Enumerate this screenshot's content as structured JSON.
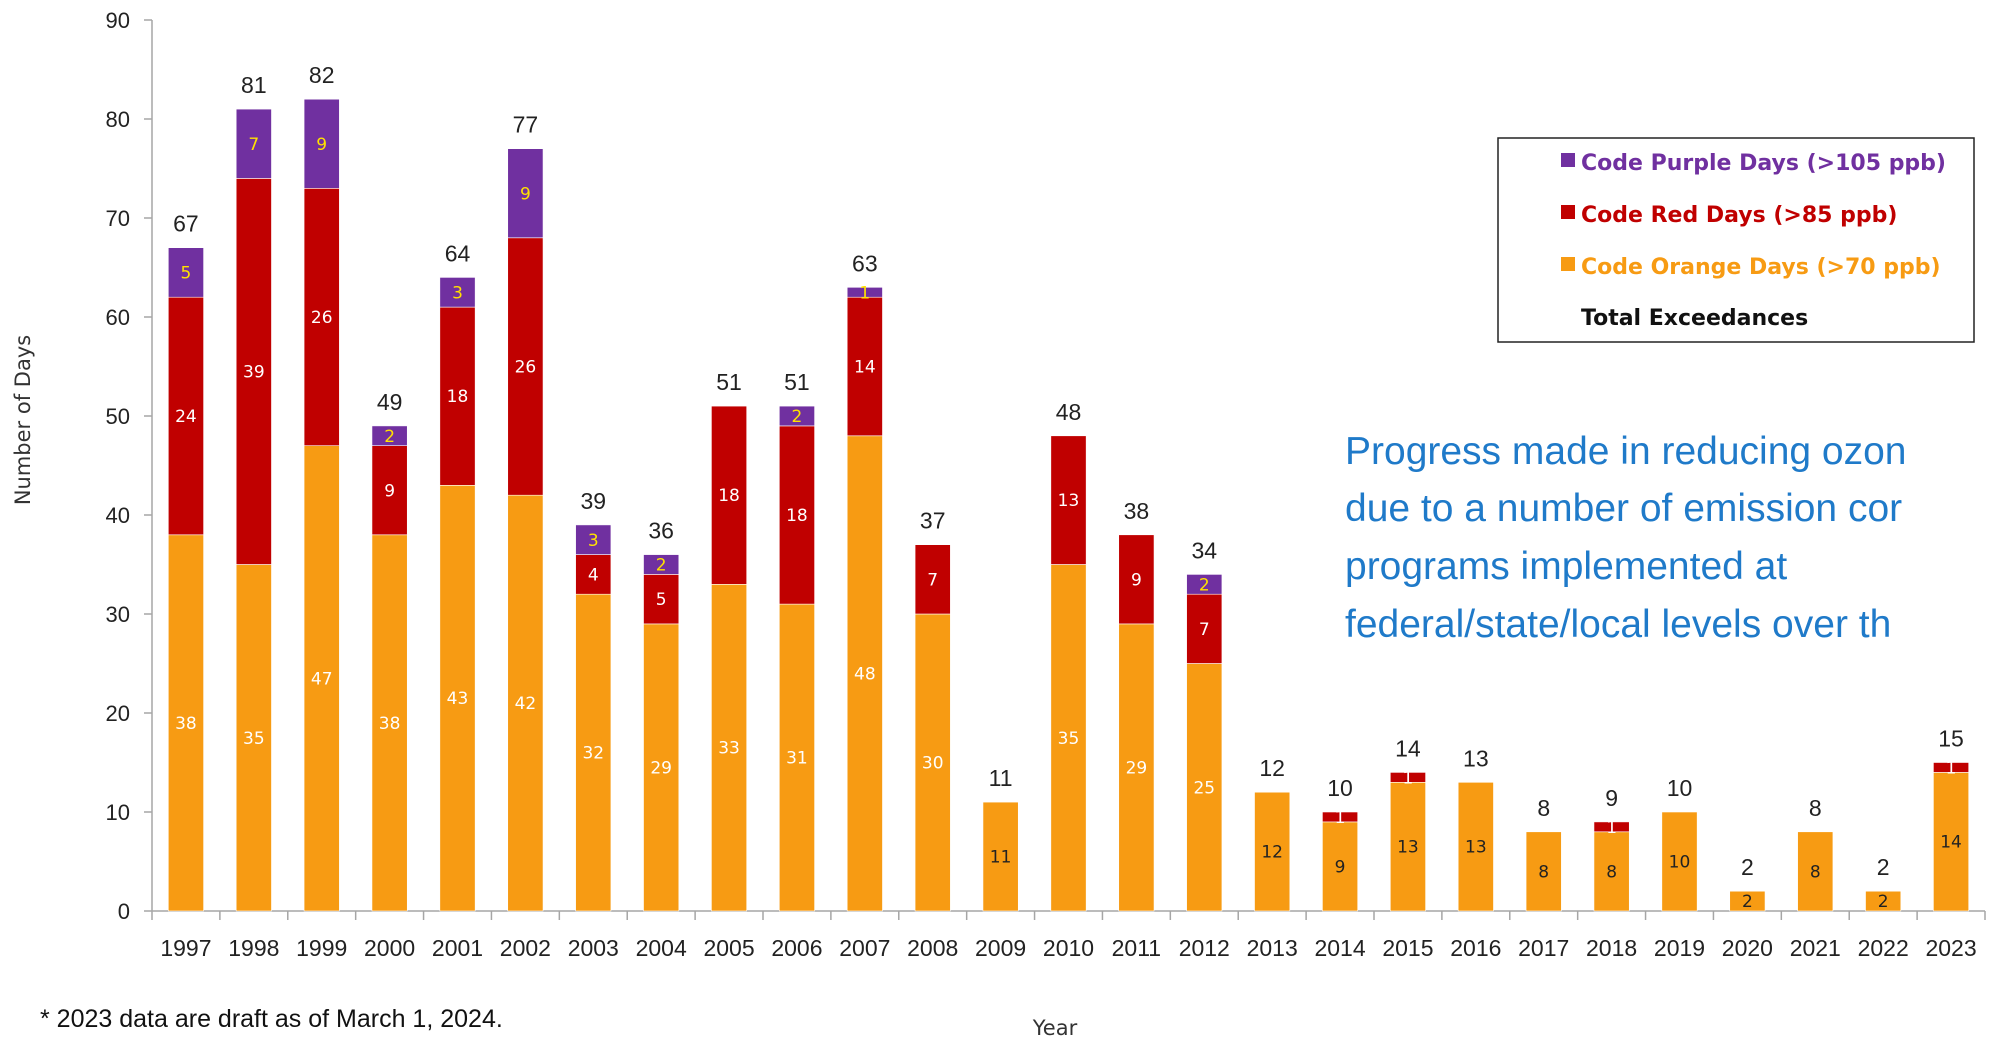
{
  "chart_data": {
    "type": "bar",
    "stacked": true,
    "categories": [
      "1997",
      "1998",
      "1999",
      "2000",
      "2001",
      "2002",
      "2003",
      "2004",
      "2005",
      "2006",
      "2007",
      "2008",
      "2009",
      "2010",
      "2011",
      "2012",
      "2013",
      "2014",
      "2015",
      "2016",
      "2017",
      "2018",
      "2019",
      "2020",
      "2021",
      "2022",
      "2023"
    ],
    "series": [
      {
        "name": "Code Orange Days (>70 ppb)",
        "color": "#f79b13",
        "values": [
          38,
          35,
          47,
          38,
          43,
          42,
          32,
          29,
          33,
          31,
          48,
          30,
          11,
          35,
          29,
          25,
          12,
          9,
          13,
          13,
          8,
          8,
          10,
          2,
          8,
          2,
          14
        ],
        "value_labels": [
          "38",
          "35",
          "47",
          "38",
          "43",
          "42",
          "32",
          "29",
          "33",
          "31",
          "48",
          "30",
          "11",
          "35",
          "29",
          "25",
          "12",
          "9",
          "13",
          "13",
          "8",
          "8",
          "10",
          "2",
          "8",
          "2",
          "14"
        ]
      },
      {
        "name": "Code Red Days (>85 ppb)",
        "color": "#c00000",
        "values": [
          24,
          39,
          26,
          9,
          18,
          26,
          4,
          5,
          18,
          18,
          14,
          7,
          0,
          13,
          9,
          7,
          0,
          1,
          1,
          0,
          0,
          1,
          0,
          0,
          0,
          0,
          1
        ],
        "value_labels": [
          "24",
          "39",
          "26",
          "9",
          "18",
          "26",
          "4",
          "5",
          "18",
          "18",
          "14",
          "7",
          "",
          "13",
          "9",
          "7",
          "",
          "1",
          "1",
          "",
          "0",
          "1",
          "",
          "",
          "",
          "",
          "1"
        ]
      },
      {
        "name": "Code Purple Days (>105 ppb)",
        "color": "#7030a0",
        "values": [
          5,
          7,
          9,
          2,
          3,
          9,
          3,
          2,
          0,
          2,
          1,
          0,
          0,
          0,
          0,
          2,
          0,
          0,
          0,
          0,
          0,
          0,
          0,
          0,
          0,
          0,
          0
        ],
        "value_labels": [
          "5",
          "7",
          "9",
          "2",
          "3",
          "9",
          "3",
          "2",
          "",
          "2",
          "1",
          "",
          "",
          "",
          "",
          "2",
          "",
          "",
          "",
          "",
          "",
          "",
          "",
          "",
          "",
          "",
          ""
        ]
      }
    ],
    "totals": [
      67,
      81,
      82,
      49,
      64,
      77,
      39,
      36,
      51,
      51,
      63,
      37,
      11,
      48,
      38,
      34,
      12,
      10,
      14,
      13,
      8,
      9,
      10,
      2,
      8,
      2,
      15
    ],
    "total_series_name": "Total Exceedances",
    "ylabel": "Number of Days",
    "xlabel": "Year",
    "ylim": [
      0,
      90
    ],
    "yticks": [
      0,
      10,
      20,
      30,
      40,
      50,
      60,
      70,
      80,
      90
    ],
    "legend_position": "top-right",
    "grid": false
  },
  "annotation": {
    "lines": [
      "Progress made in reducing ozon",
      "due to a number of emission cor",
      "programs implemented at",
      "federal/state/local levels over th"
    ]
  },
  "footnote": "* 2023 data are draft as of March 1, 2024.",
  "colors": {
    "orange": "#f79b13",
    "red": "#c00000",
    "purple": "#7030a0",
    "label_light": "#ffffff",
    "label_yellow": "#ffe100",
    "label_dark": "#222222",
    "annotation": "#1f7ac9"
  }
}
